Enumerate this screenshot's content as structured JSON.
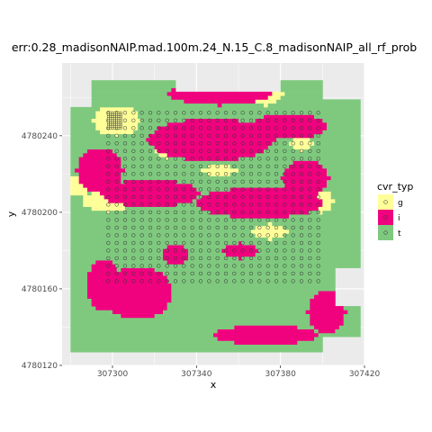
{
  "chart_data": {
    "type": "raster",
    "title": "err:0.28_madisonNAIP.mad.100m.24_N.15_C.8_madisonNAIP_all_rf_prob",
    "xlabel": "x",
    "ylabel": "y",
    "xlim": [
      307276,
      307420
    ],
    "ylim": [
      4780120,
      4780278
    ],
    "x_ticks": [
      {
        "value": 307300,
        "label": "307300"
      },
      {
        "value": 307340,
        "label": "307340"
      },
      {
        "value": 307380,
        "label": "307380"
      },
      {
        "value": 307420,
        "label": "307420"
      }
    ],
    "y_ticks": [
      {
        "value": 4780120,
        "label": "4780120"
      },
      {
        "value": 4780160,
        "label": "4780160"
      },
      {
        "value": 4780200,
        "label": "4780200"
      },
      {
        "value": 4780240,
        "label": "4780240"
      }
    ],
    "legend": {
      "title": "cvr_typ",
      "position": "right",
      "items": [
        {
          "label": "g",
          "color": "#FFFF99"
        },
        {
          "label": "i",
          "color": "#F0027F"
        },
        {
          "label": "t",
          "color": "#7FC97F"
        }
      ]
    },
    "grid": true,
    "panel_background": "#EBEBEB",
    "point_grid": {
      "x_start": 307298,
      "x_end": 307400,
      "x_step": 4,
      "y_start": 4780164,
      "y_end": 4780252,
      "y_step": 4
    },
    "fine_grid": {
      "x_start": 307298,
      "x_end": 307304,
      "x_step": 1,
      "y_start": 4780244,
      "y_end": 4780252,
      "y_step": 1
    }
  }
}
